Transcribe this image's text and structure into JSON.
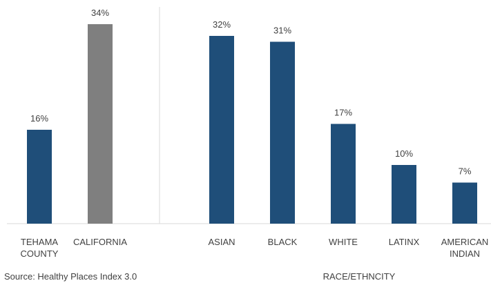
{
  "chart_data": {
    "type": "bar",
    "categories": [
      "TEHAMA COUNTY",
      "CALIFORNIA",
      "ASIAN",
      "BLACK",
      "WHITE",
      "LATINX",
      "AMERICAN INDIAN"
    ],
    "values": [
      16,
      34,
      32,
      31,
      17,
      10,
      7
    ],
    "value_labels": [
      "16%",
      "34%",
      "32%",
      "31%",
      "17%",
      "10%",
      "7%"
    ],
    "colors": [
      "#1f4e79",
      "#7f7f7f",
      "#1f4e79",
      "#1f4e79",
      "#1f4e79",
      "#1f4e79",
      "#1f4e79"
    ],
    "ylim": [
      0,
      38
    ],
    "x_label": "RACE/ETHNCITY",
    "source": "Source: Healthy Places Index 3.0"
  }
}
